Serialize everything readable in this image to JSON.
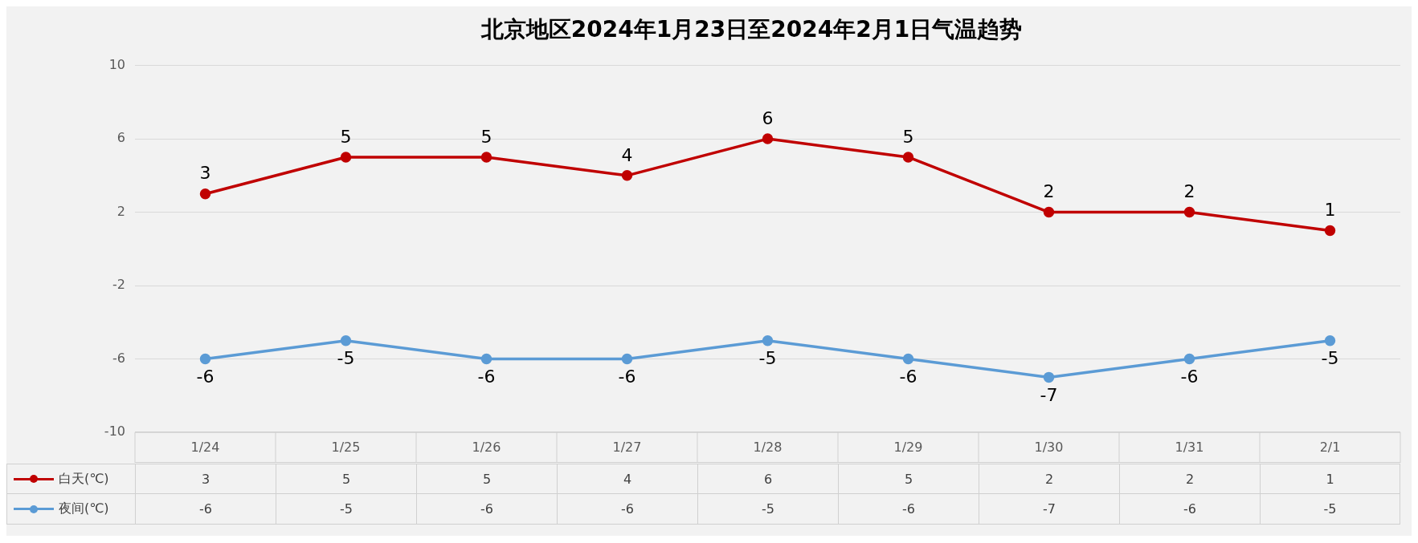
{
  "chart_data": [
    {
      "type": "line",
      "title": "北京地区2024年1月23日至2024年2月1日气温趋势",
      "categories": [
        "1/24",
        "1/25",
        "1/26",
        "1/27",
        "1/28",
        "1/29",
        "1/30",
        "1/31",
        "2/1"
      ],
      "series": [
        {
          "color": "#c00000",
          "values": [
            3,
            5,
            5,
            4,
            6,
            5,
            2,
            2,
            1
          ],
          "value_labels": [
            "3",
            "5",
            "5",
            "4",
            "6",
            "5",
            "2",
            "2",
            "1"
          ]
        },
        {
          "color": "#5b9bd5",
          "values": [
            -6,
            -5,
            -6,
            -6,
            -5,
            -6,
            -7,
            -6,
            -5
          ],
          "value_labels": [
            "-6",
            "-5",
            "-6",
            "-6",
            "-5",
            "-6",
            "-7",
            "-6",
            "-5"
          ]
        }
      ],
      "ylim": [
        -10,
        10
      ],
      "yticks": [
        10,
        6,
        2,
        -2,
        -6,
        -10
      ],
      "grid": "y",
      "marker": "circle",
      "line_style": "solid"
    },
    {
      "type": "other",
      "series": [
        {
          "name": "白天(℃)",
          "color": "#c00000"
        },
        {
          "name": "夜间(℃)",
          "color": "#5b9bd5"
        }
      ],
      "annotations": [
        "3",
        "5",
        "5",
        "4",
        "6",
        "5",
        "2",
        "2",
        "1",
        "-6",
        "-5",
        "-6",
        "-6",
        "-5",
        "-6",
        "-7",
        "-6",
        "-5"
      ],
      "legend": "bottom"
    }
  ]
}
